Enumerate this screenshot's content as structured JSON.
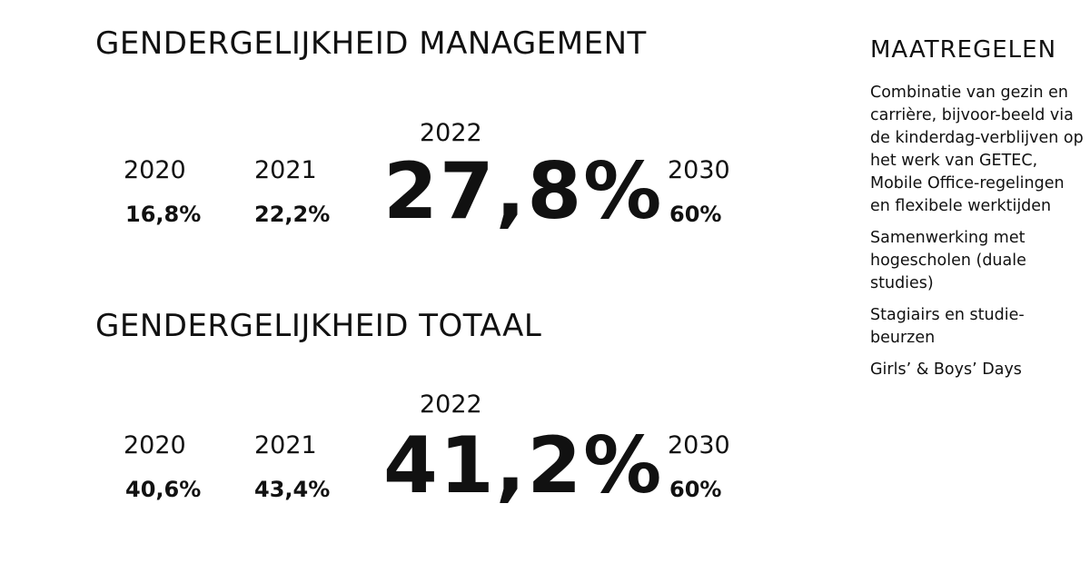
{
  "management": {
    "title": "GENDERGELIJKHEID MANAGEMENT",
    "y2020": "2020",
    "v2020": "16,8%",
    "y2021": "2021",
    "v2021": "22,2%",
    "y2022": "2022",
    "v2022": "27,8%",
    "y2030": "2030",
    "v2030": "60%"
  },
  "totaal": {
    "title": "GENDERGELIJKHEID TOTAAL",
    "y2020": "2020",
    "v2020": "40,6%",
    "y2021": "2021",
    "v2021": "43,4%",
    "y2022": "2022",
    "v2022": "41,2%",
    "y2030": "2030",
    "v2030": "60%"
  },
  "maatregelen": {
    "title": "MAATREGELEN",
    "items": [
      "Combinatie van gezin en carrière, bijvoor-beeld via de kinderdag-verblijven op het werk van GETEC, Mobile Office-regelingen en flexibele werktijden",
      "Samenwerking met hogescholen (duale studies)",
      "Stagiairs en studie-beurzen",
      "Girls’ & Boys’ Days"
    ]
  }
}
